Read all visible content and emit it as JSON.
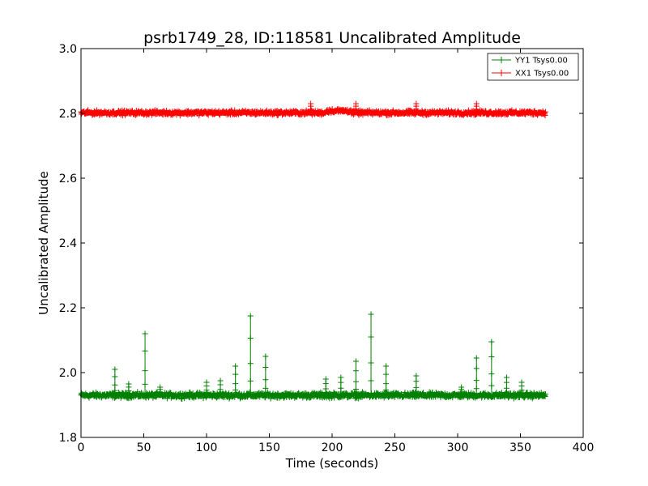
{
  "chart_data": {
    "type": "scatter",
    "title": "psrb1749_28, ID:118581 Uncalibrated Amplitude",
    "xlabel": "Time (seconds)",
    "ylabel": "Uncalibrated Amplitude",
    "xlim": [
      0,
      400
    ],
    "ylim": [
      1.8,
      3.0
    ],
    "xticks": [
      "0",
      "50",
      "100",
      "150",
      "200",
      "250",
      "300",
      "350",
      "400"
    ],
    "yticks": [
      "1.8",
      "2.0",
      "2.2",
      "2.4",
      "2.6",
      "2.8",
      "3.0"
    ],
    "grid": false,
    "legend_position": "top-right",
    "marker": "+",
    "series": [
      {
        "name": "YY1 Tsys0.00",
        "color": "#008000",
        "x_range": [
          0,
          370
        ],
        "baseline": 1.93,
        "noise": 0.012,
        "spikes": [
          {
            "x": 27,
            "y": 2.01
          },
          {
            "x": 38,
            "y": 1.965
          },
          {
            "x": 51,
            "y": 2.12
          },
          {
            "x": 63,
            "y": 1.955
          },
          {
            "x": 100,
            "y": 1.97
          },
          {
            "x": 111,
            "y": 1.975
          },
          {
            "x": 123,
            "y": 2.02
          },
          {
            "x": 135,
            "y": 2.175
          },
          {
            "x": 147,
            "y": 2.05
          },
          {
            "x": 195,
            "y": 1.98
          },
          {
            "x": 207,
            "y": 1.985
          },
          {
            "x": 219,
            "y": 2.035
          },
          {
            "x": 231,
            "y": 2.18
          },
          {
            "x": 243,
            "y": 2.02
          },
          {
            "x": 267,
            "y": 1.99
          },
          {
            "x": 303,
            "y": 1.955
          },
          {
            "x": 315,
            "y": 2.045
          },
          {
            "x": 327,
            "y": 2.095
          },
          {
            "x": 339,
            "y": 1.985
          },
          {
            "x": 351,
            "y": 1.97
          }
        ]
      },
      {
        "name": "XX1 Tsys0.00",
        "color": "#ff0000",
        "x_range": [
          0,
          370
        ],
        "baseline": 2.802,
        "noise": 0.01,
        "spikes": [
          {
            "x": 183,
            "y": 2.83
          },
          {
            "x": 219,
            "y": 2.83
          },
          {
            "x": 267,
            "y": 2.83
          },
          {
            "x": 315,
            "y": 2.83
          }
        ]
      }
    ]
  }
}
